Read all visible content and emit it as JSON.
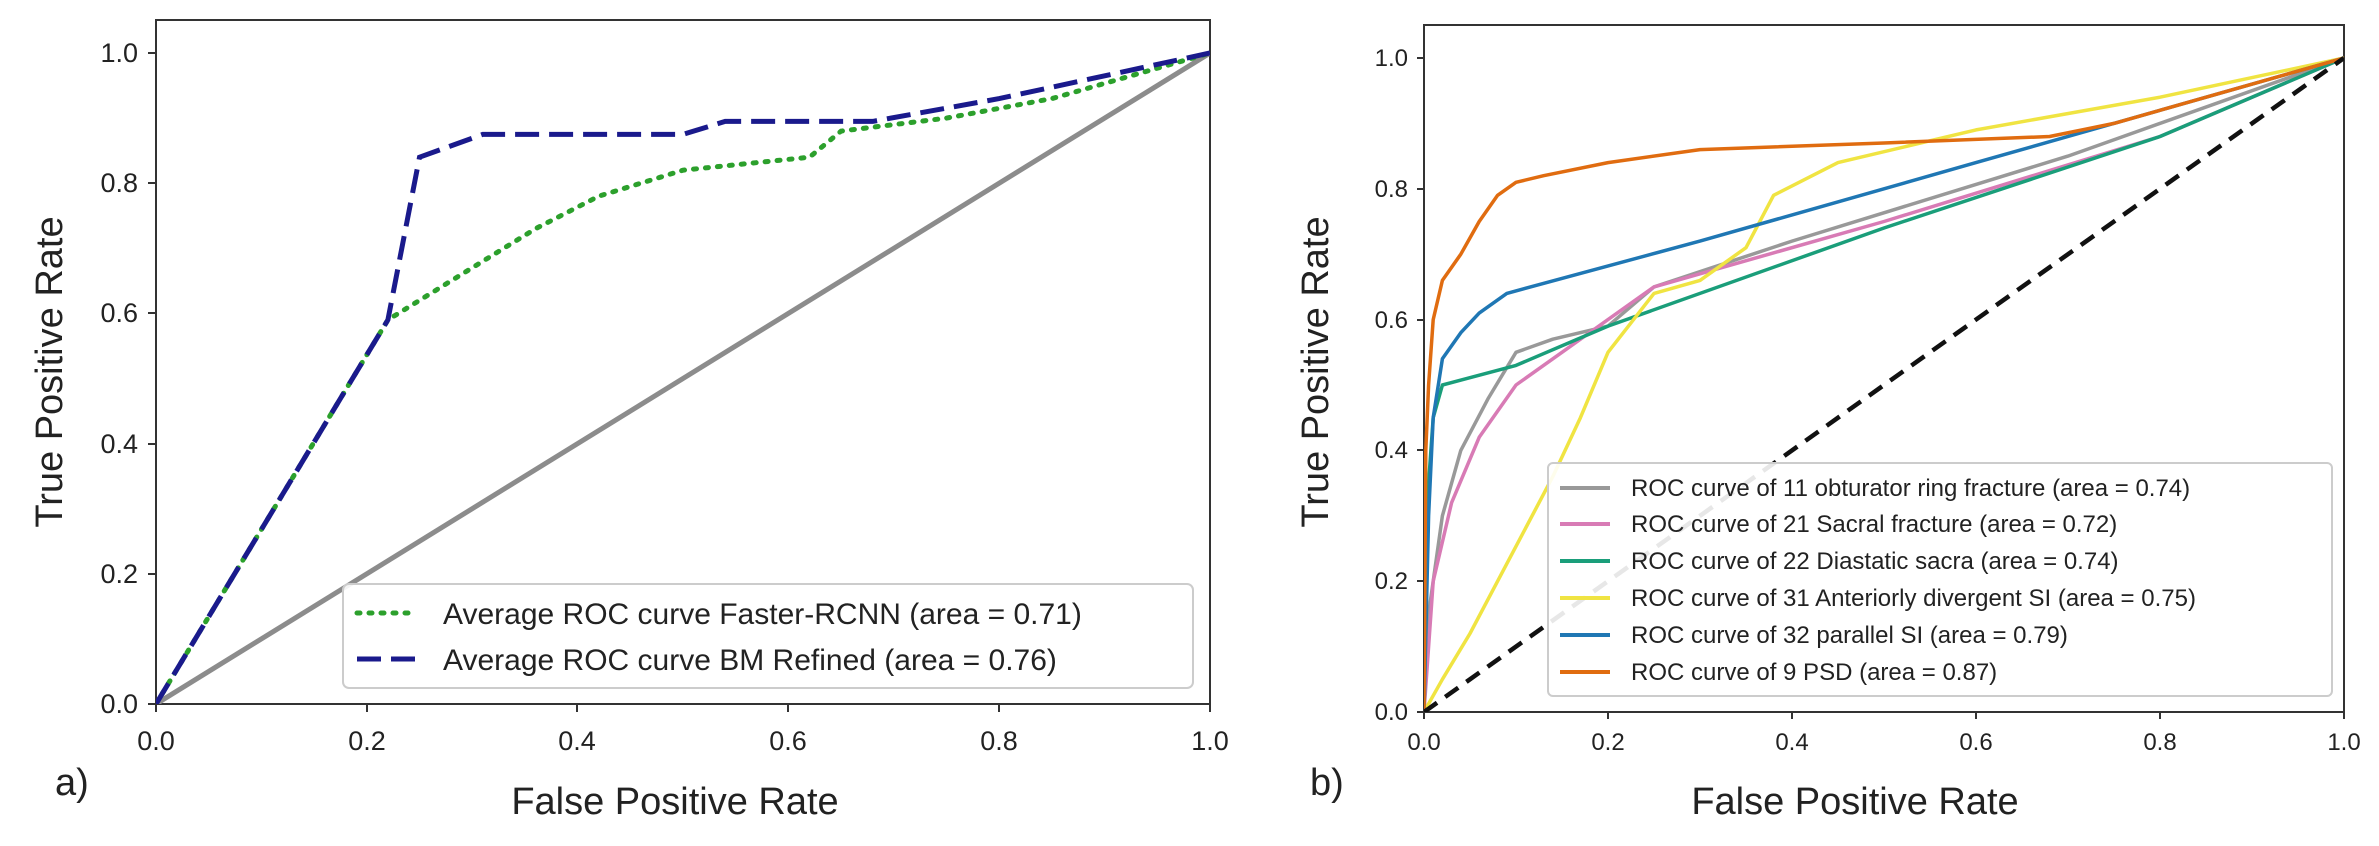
{
  "chart_data": [
    {
      "type": "line",
      "panel": "a)",
      "xlabel": "False  Positive Rate",
      "ylabel": "True Positive Rate",
      "xlim": [
        0,
        1
      ],
      "ylim": [
        0,
        1.05
      ],
      "xticks": [
        "0.0",
        "0.2",
        "0.4",
        "0.6",
        "0.8",
        "1.0"
      ],
      "yticks": [
        "0.0",
        "0.2",
        "0.4",
        "0.6",
        "0.8",
        "1.0"
      ],
      "grid": false,
      "legend_position": "lower-right",
      "reference_line": {
        "style": "solid-gray",
        "x": [
          0,
          1
        ],
        "y": [
          0,
          1
        ]
      },
      "series": [
        {
          "name": "Average ROC curve Faster-RCNN (area = 0.71)",
          "color": "#2ca02c",
          "style": "dotted",
          "x": [
            0.0,
            0.22,
            0.3,
            0.36,
            0.42,
            0.5,
            0.56,
            0.62,
            0.65,
            0.75,
            0.85,
            1.0
          ],
          "y": [
            0.0,
            0.59,
            0.67,
            0.73,
            0.78,
            0.82,
            0.83,
            0.84,
            0.88,
            0.9,
            0.93,
            1.0
          ]
        },
        {
          "name": "Average ROC curve BM Refined (area = 0.76)",
          "color": "#1a1a8c",
          "style": "dashed",
          "x": [
            0.0,
            0.22,
            0.25,
            0.31,
            0.5,
            0.54,
            0.68,
            0.8,
            1.0
          ],
          "y": [
            0.0,
            0.59,
            0.84,
            0.875,
            0.875,
            0.895,
            0.895,
            0.93,
            1.0
          ]
        }
      ]
    },
    {
      "type": "line",
      "panel": "b)",
      "xlabel": "False  Positive Rate",
      "ylabel": "True Positive Rate",
      "xlim": [
        0,
        1
      ],
      "ylim": [
        0,
        1.05
      ],
      "xticks": [
        "0.0",
        "0.2",
        "0.4",
        "0.6",
        "0.8",
        "1.0"
      ],
      "yticks": [
        "0.0",
        "0.2",
        "0.4",
        "0.6",
        "0.8",
        "1.0"
      ],
      "grid": false,
      "legend_position": "lower-right",
      "reference_line": {
        "style": "dashed-black",
        "x": [
          0,
          1
        ],
        "y": [
          0,
          1
        ]
      },
      "series": [
        {
          "name": "ROC curve of 11 obturator ring fracture (area = 0.74)",
          "color": "#999999",
          "x": [
            0.0,
            0.005,
            0.02,
            0.04,
            0.07,
            0.1,
            0.14,
            0.2,
            0.25,
            0.4,
            0.7,
            1.0
          ],
          "y": [
            0.0,
            0.15,
            0.3,
            0.4,
            0.48,
            0.55,
            0.57,
            0.59,
            0.65,
            0.72,
            0.85,
            1.0
          ]
        },
        {
          "name": "ROC curve of 21 Sacral fracture (area = 0.72)",
          "color": "#d87bb5",
          "x": [
            0.0,
            0.01,
            0.03,
            0.06,
            0.1,
            0.15,
            0.2,
            0.25,
            0.3,
            0.5,
            0.8,
            1.0
          ],
          "y": [
            0.0,
            0.2,
            0.32,
            0.42,
            0.5,
            0.55,
            0.6,
            0.65,
            0.67,
            0.75,
            0.88,
            1.0
          ]
        },
        {
          "name": "ROC curve of 22 Diastatic sacra (area = 0.74)",
          "color": "#1a9e7a",
          "x": [
            0.0,
            0.005,
            0.01,
            0.02,
            0.1,
            0.2,
            0.5,
            0.8,
            1.0
          ],
          "y": [
            0.0,
            0.35,
            0.45,
            0.5,
            0.53,
            0.59,
            0.74,
            0.88,
            1.0
          ]
        },
        {
          "name": "ROC curve of 31 Anteriorly divergent SI (area = 0.75)",
          "color": "#f0e442",
          "x": [
            0.0,
            0.02,
            0.05,
            0.08,
            0.11,
            0.14,
            0.17,
            0.2,
            0.25,
            0.3,
            0.35,
            0.38,
            0.45,
            0.6,
            0.8,
            1.0
          ],
          "y": [
            0.0,
            0.05,
            0.12,
            0.2,
            0.28,
            0.36,
            0.45,
            0.55,
            0.64,
            0.66,
            0.71,
            0.79,
            0.84,
            0.89,
            0.94,
            1.0
          ]
        },
        {
          "name": "ROC curve of 32 parallel SI (area = 0.79)",
          "color": "#1f77b4",
          "x": [
            0.0,
            0.005,
            0.01,
            0.02,
            0.04,
            0.06,
            0.09,
            0.3,
            0.6,
            1.0
          ],
          "y": [
            0.0,
            0.3,
            0.45,
            0.54,
            0.58,
            0.61,
            0.64,
            0.72,
            0.84,
            1.0
          ]
        },
        {
          "name": "ROC curve of 9 PSD (area = 0.87)",
          "color": "#e06c10",
          "x": [
            0.0,
            0.002,
            0.005,
            0.01,
            0.02,
            0.04,
            0.06,
            0.08,
            0.1,
            0.13,
            0.2,
            0.3,
            0.5,
            0.68,
            0.75,
            1.0
          ],
          "y": [
            0.0,
            0.4,
            0.5,
            0.6,
            0.66,
            0.7,
            0.75,
            0.79,
            0.81,
            0.82,
            0.84,
            0.86,
            0.87,
            0.88,
            0.9,
            1.0
          ]
        }
      ]
    }
  ]
}
